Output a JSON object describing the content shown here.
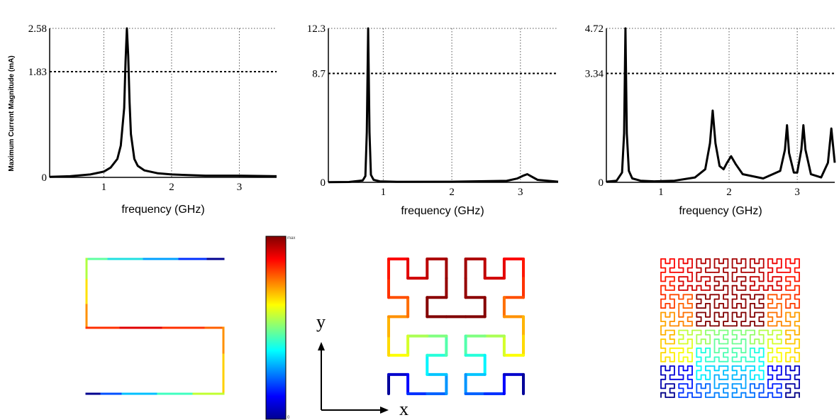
{
  "chart_data": [
    {
      "type": "line",
      "ylabel": "Maximum Current Magnitude (mA)",
      "xlabel": "frequency (GHz)",
      "xlim": [
        0.2,
        3.55
      ],
      "ylim": [
        0,
        2.58
      ],
      "xticks": [
        1,
        2,
        3
      ],
      "yticks": [
        "0",
        "1.83",
        "2.58"
      ],
      "threshold": 1.83,
      "series": [
        {
          "x": [
            0.2,
            0.5,
            0.8,
            1.0,
            1.1,
            1.2,
            1.25,
            1.3,
            1.32,
            1.34,
            1.36,
            1.38,
            1.4,
            1.45,
            1.5,
            1.6,
            1.8,
            2.0,
            2.5,
            3.0,
            3.55
          ],
          "y": [
            0.01,
            0.02,
            0.05,
            0.1,
            0.17,
            0.32,
            0.55,
            1.2,
            2.0,
            2.58,
            2.1,
            1.3,
            0.75,
            0.32,
            0.2,
            0.12,
            0.07,
            0.05,
            0.03,
            0.03,
            0.02
          ]
        }
      ]
    },
    {
      "type": "line",
      "xlabel": "frequency (GHz)",
      "xlim": [
        0.2,
        3.55
      ],
      "ylim": [
        0,
        12.3
      ],
      "xticks": [
        1,
        2,
        3
      ],
      "yticks": [
        "0",
        "8.7",
        "12.3"
      ],
      "threshold": 8.7,
      "series": [
        {
          "x": [
            0.2,
            0.5,
            0.7,
            0.74,
            0.76,
            0.78,
            0.8,
            0.82,
            0.86,
            0.95,
            1.2,
            2.0,
            2.8,
            2.95,
            3.05,
            3.1,
            3.15,
            3.25,
            3.55
          ],
          "y": [
            0.01,
            0.03,
            0.15,
            0.5,
            4.0,
            12.3,
            4.0,
            0.6,
            0.2,
            0.08,
            0.04,
            0.05,
            0.12,
            0.3,
            0.55,
            0.65,
            0.5,
            0.2,
            0.05
          ]
        }
      ]
    },
    {
      "type": "line",
      "xlabel": "frequency (GHz)",
      "xlim": [
        0.2,
        3.55
      ],
      "ylim": [
        0,
        4.72
      ],
      "xticks": [
        1,
        2,
        3
      ],
      "yticks": [
        "0",
        "3.34",
        "4.72"
      ],
      "threshold": 3.34,
      "series": [
        {
          "x": [
            0.2,
            0.35,
            0.43,
            0.46,
            0.48,
            0.5,
            0.53,
            0.58,
            0.7,
            0.9,
            1.2,
            1.5,
            1.65,
            1.72,
            1.76,
            1.8,
            1.86,
            1.92,
            1.97,
            2.03,
            2.1,
            2.2,
            2.5,
            2.75,
            2.82,
            2.85,
            2.88,
            2.95,
            3.0,
            3.06,
            3.09,
            3.12,
            3.2,
            3.35,
            3.45,
            3.5,
            3.55
          ],
          "y": [
            0.02,
            0.05,
            0.3,
            1.5,
            4.72,
            1.5,
            0.35,
            0.12,
            0.05,
            0.03,
            0.05,
            0.15,
            0.4,
            1.2,
            2.2,
            1.2,
            0.5,
            0.4,
            0.6,
            0.8,
            0.55,
            0.25,
            0.12,
            0.35,
            1.0,
            1.75,
            0.9,
            0.3,
            0.3,
            1.0,
            1.75,
            1.0,
            0.25,
            0.15,
            0.6,
            1.65,
            0.6
          ]
        }
      ]
    }
  ],
  "colorbar": {
    "max_label": "max",
    "min_label": "0"
  },
  "axes_indicator": {
    "x_label": "x",
    "y_label": "y"
  },
  "colors": {
    "line": "#000000",
    "grid": "#555555"
  }
}
